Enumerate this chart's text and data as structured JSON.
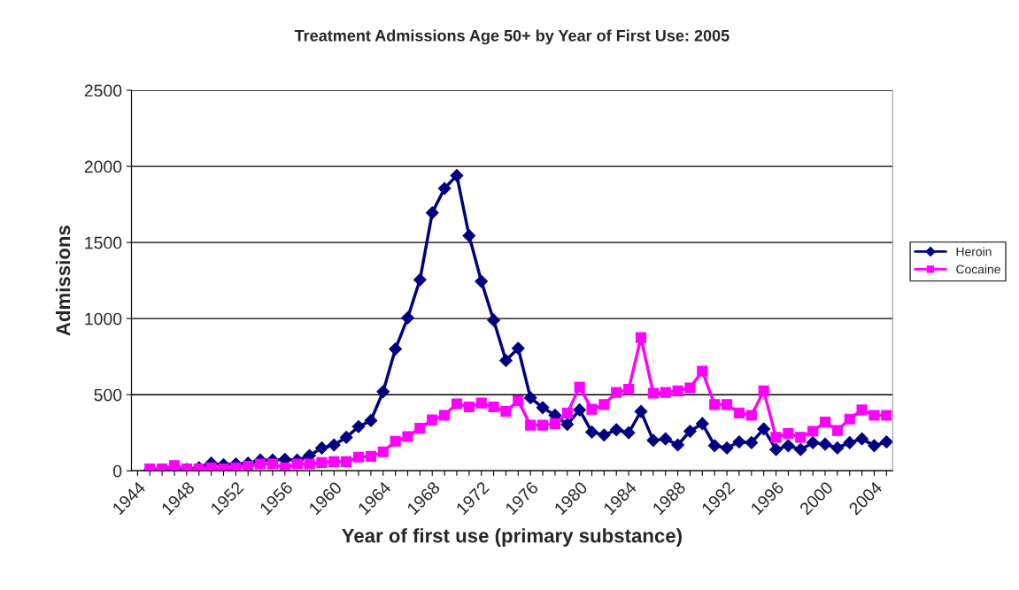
{
  "chart_data": {
    "type": "line",
    "title": "Treatment Admissions Age 50+ by Year of First Use: 2005",
    "xlabel": "Year of first use (primary substance)",
    "ylabel": "Admissions",
    "categories": [
      "1944",
      null,
      null,
      null,
      "1948",
      null,
      null,
      null,
      "1952",
      null,
      null,
      null,
      "1956",
      null,
      null,
      null,
      "1960",
      null,
      null,
      null,
      "1964",
      null,
      null,
      null,
      "1968",
      null,
      null,
      null,
      "1972",
      null,
      null,
      null,
      "1976",
      null,
      null,
      null,
      "1980",
      null,
      null,
      null,
      "1984",
      null,
      null,
      null,
      "1988",
      null,
      null,
      null,
      "1992",
      null,
      null,
      null,
      "1996",
      null,
      null,
      null,
      "2000",
      null,
      null,
      null,
      "2004",
      null
    ],
    "series": [
      {
        "name": "Heroin",
        "color": "#000080",
        "marker": "diamond",
        "values": [
          null,
          5,
          5,
          0,
          10,
          20,
          50,
          40,
          45,
          50,
          70,
          70,
          75,
          70,
          100,
          150,
          170,
          220,
          290,
          330,
          520,
          800,
          1005,
          1255,
          1695,
          1855,
          1940,
          1545,
          1245,
          990,
          725,
          805,
          480,
          415,
          365,
          305,
          400,
          255,
          235,
          270,
          250,
          390,
          200,
          210,
          170,
          260,
          310,
          165,
          150,
          190,
          185,
          275,
          140,
          165,
          140,
          185,
          175,
          150,
          185,
          210,
          165,
          190
        ]
      },
      {
        "name": "Cocaine",
        "color": "#ff00ff",
        "marker": "square",
        "values": [
          null,
          12,
          12,
          35,
          12,
          12,
          20,
          12,
          20,
          30,
          45,
          45,
          20,
          45,
          45,
          55,
          60,
          60,
          90,
          95,
          125,
          195,
          225,
          280,
          335,
          365,
          440,
          420,
          445,
          420,
          390,
          460,
          300,
          300,
          310,
          380,
          550,
          405,
          435,
          515,
          535,
          875,
          510,
          515,
          525,
          545,
          655,
          435,
          435,
          380,
          365,
          525,
          220,
          245,
          220,
          260,
          320,
          265,
          340,
          400,
          365,
          365
        ]
      }
    ],
    "ylim": [
      0,
      2500
    ],
    "yticks": [
      0,
      500,
      1000,
      1500,
      2000,
      2500
    ],
    "grid": "y",
    "legend": "right",
    "line_style": "solid"
  }
}
